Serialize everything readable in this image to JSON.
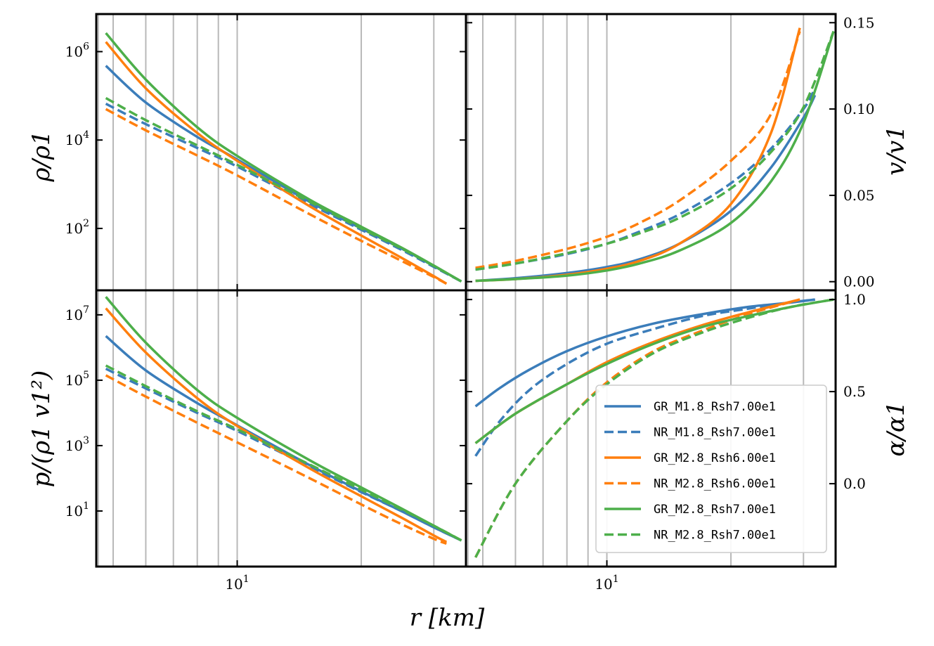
{
  "chart_data": {
    "type": "line",
    "layout": "2x2 panels, shared x axis",
    "xlabel": "r [km]",
    "x_axis_scale": "log",
    "x_tick_labels": [
      "10^1"
    ],
    "colors": {
      "M1.8_Rsh70": "#3b7dba",
      "M2.8_Rsh60": "#ff7f0e",
      "M2.8_Rsh70": "#4daf4a"
    },
    "legend": {
      "placement": "lower-right (bottom-right panel)",
      "entries": [
        {
          "label": "GR_M1.8_Rsh7.00e1",
          "color": "#3b7dba",
          "style": "solid"
        },
        {
          "label": "NR_M1.8_Rsh7.00e1",
          "color": "#3b7dba",
          "style": "dashed"
        },
        {
          "label": "GR_M2.8_Rsh6.00e1",
          "color": "#ff7f0e",
          "style": "solid"
        },
        {
          "label": "NR_M2.8_Rsh6.00e1",
          "color": "#ff7f0e",
          "style": "dashed"
        },
        {
          "label": "GR_M2.8_Rsh7.00e1",
          "color": "#4daf4a",
          "style": "solid"
        },
        {
          "label": "NR_M2.8_Rsh7.00e1",
          "color": "#4daf4a",
          "style": "dashed"
        }
      ]
    },
    "panels": [
      {
        "id": "density",
        "ylabel": "ρ/ρ1",
        "yscale": "log",
        "y_tick_labels": [
          "10^2",
          "10^4",
          "10^6"
        ],
        "xlim": [
          4.55,
          35.9
        ],
        "ylim_log10": [
          0.6,
          6.85
        ],
        "series": [
          {
            "name": "GR_M1.8_Rsh7.00e1",
            "style": "solid",
            "color": "#3b7dba",
            "x": [
              4.8,
              6,
              8,
              10,
              15,
              20,
              25,
              30,
              35
            ],
            "y_log10": [
              5.68,
              4.85,
              4.07,
              3.56,
              2.6,
              2.0,
              1.55,
              1.15,
              0.8
            ]
          },
          {
            "name": "NR_M1.8_Rsh7.00e1",
            "style": "dashed",
            "color": "#3b7dba",
            "x": [
              4.8,
              6,
              8,
              10,
              15,
              20,
              25,
              30,
              35
            ],
            "y_log10": [
              4.82,
              4.36,
              3.82,
              3.4,
              2.55,
              1.97,
              1.52,
              1.13,
              0.8
            ]
          },
          {
            "name": "GR_M2.8_Rsh6.00e1",
            "style": "solid",
            "color": "#ff7f0e",
            "x": [
              4.8,
              6,
              8,
              10,
              15,
              20,
              25,
              30,
              32.2
            ],
            "y_log10": [
              6.22,
              5.17,
              4.16,
              3.53,
              2.5,
              1.84,
              1.34,
              0.92,
              0.75
            ]
          },
          {
            "name": "NR_M2.8_Rsh6.00e1",
            "style": "dashed",
            "color": "#ff7f0e",
            "x": [
              4.8,
              6,
              8,
              10,
              15,
              20,
              25,
              30,
              32.2
            ],
            "y_log10": [
              4.7,
              4.22,
              3.65,
              3.2,
              2.32,
              1.72,
              1.27,
              0.9,
              0.75
            ]
          },
          {
            "name": "GR_M2.8_Rsh7.00e1",
            "style": "solid",
            "color": "#4daf4a",
            "x": [
              4.8,
              6,
              8,
              10,
              15,
              20,
              25,
              30,
              35
            ],
            "y_log10": [
              6.42,
              5.37,
              4.29,
              3.64,
              2.65,
              2.04,
              1.57,
              1.16,
              0.8
            ]
          },
          {
            "name": "NR_M2.8_Rsh7.00e1",
            "style": "dashed",
            "color": "#4daf4a",
            "x": [
              4.8,
              6,
              8,
              10,
              15,
              20,
              25,
              30,
              35
            ],
            "y_log10": [
              4.95,
              4.45,
              3.88,
              3.44,
              2.6,
              2.0,
              1.55,
              1.15,
              0.8
            ]
          }
        ]
      },
      {
        "id": "velocity",
        "ylabel": "v/v1",
        "yscale": "linear",
        "y_tick_labels": [
          "0.00",
          "0.05",
          "0.10",
          "0.15"
        ],
        "xlim": [
          4.55,
          35.9
        ],
        "ylim": [
          -0.005,
          0.155
        ],
        "series": [
          {
            "name": "GR_M1.8_Rsh7.00e1",
            "style": "solid",
            "color": "#3b7dba",
            "x": [
              4.8,
              6,
              8,
              10,
              12,
              15,
              20,
              25,
              30,
              32
            ],
            "y": [
              0.0005,
              0.002,
              0.005,
              0.0085,
              0.013,
              0.022,
              0.041,
              0.066,
              0.095,
              0.108
            ]
          },
          {
            "name": "NR_M1.8_Rsh7.00e1",
            "style": "dashed",
            "color": "#3b7dba",
            "x": [
              4.8,
              6,
              8,
              10,
              12,
              15,
              20,
              25,
              30,
              32
            ],
            "y": [
              0.007,
              0.0105,
              0.016,
              0.022,
              0.029,
              0.039,
              0.057,
              0.077,
              0.1,
              0.112
            ]
          },
          {
            "name": "GR_M2.8_Rsh6.00e1",
            "style": "solid",
            "color": "#ff7f0e",
            "x": [
              4.8,
              6,
              8,
              10,
              12,
              15,
              20,
              25,
              29.4
            ],
            "y": [
              0.0005,
              0.0015,
              0.004,
              0.0075,
              0.012,
              0.022,
              0.045,
              0.086,
              0.147
            ]
          },
          {
            "name": "NR_M2.8_Rsh6.00e1",
            "style": "dashed",
            "color": "#ff7f0e",
            "x": [
              4.8,
              6,
              8,
              10,
              12,
              15,
              20,
              25,
              29.4
            ],
            "y": [
              0.008,
              0.012,
              0.019,
              0.026,
              0.034,
              0.047,
              0.07,
              0.097,
              0.145
            ]
          },
          {
            "name": "GR_M2.8_Rsh7.00e1",
            "style": "solid",
            "color": "#4daf4a",
            "x": [
              4.8,
              6,
              8,
              10,
              12,
              15,
              20,
              25,
              30,
              35.5
            ],
            "y": [
              0.0005,
              0.0015,
              0.0035,
              0.0065,
              0.0105,
              0.018,
              0.034,
              0.058,
              0.092,
              0.145
            ]
          },
          {
            "name": "NR_M2.8_Rsh7.00e1",
            "style": "dashed",
            "color": "#4daf4a",
            "x": [
              4.8,
              6,
              8,
              10,
              12,
              15,
              20,
              25,
              30,
              35.5
            ],
            "y": [
              0.007,
              0.0105,
              0.0165,
              0.022,
              0.028,
              0.037,
              0.054,
              0.075,
              0.101,
              0.145
            ]
          }
        ]
      },
      {
        "id": "pressure",
        "ylabel": "p/(ρ1 v1²)",
        "yscale": "log",
        "y_tick_labels": [
          "10^1",
          "10^3",
          "10^5",
          "10^7"
        ],
        "xlim": [
          4.55,
          35.9
        ],
        "ylim_log10": [
          -0.7,
          7.75
        ],
        "series": [
          {
            "name": "GR_M1.8_Rsh7.00e1",
            "style": "solid",
            "color": "#3b7dba",
            "x": [
              4.8,
              6,
              8,
              10,
              15,
              20,
              25,
              30,
              35
            ],
            "y_log10": [
              6.35,
              5.3,
              4.3,
              3.62,
              2.4,
              1.6,
              1.0,
              0.5,
              0.1
            ]
          },
          {
            "name": "NR_M1.8_Rsh7.00e1",
            "style": "dashed",
            "color": "#3b7dba",
            "x": [
              4.8,
              6,
              8,
              10,
              15,
              20,
              25,
              30,
              35
            ],
            "y_log10": [
              5.35,
              4.75,
              4.0,
              3.45,
              2.35,
              1.58,
              1.0,
              0.5,
              0.1
            ]
          },
          {
            "name": "GR_M2.8_Rsh6.00e1",
            "style": "solid",
            "color": "#ff7f0e",
            "x": [
              4.8,
              6,
              8,
              10,
              15,
              20,
              25,
              30,
              32.2
            ],
            "y_log10": [
              7.2,
              5.85,
              4.45,
              3.6,
              2.3,
              1.45,
              0.8,
              0.25,
              0.05
            ]
          },
          {
            "name": "NR_M2.8_Rsh6.00e1",
            "style": "dashed",
            "color": "#ff7f0e",
            "x": [
              4.8,
              6,
              8,
              10,
              15,
              20,
              25,
              30,
              32.2
            ],
            "y_log10": [
              5.15,
              4.5,
              3.7,
              3.1,
              2.0,
              1.2,
              0.6,
              0.15,
              0.0
            ]
          },
          {
            "name": "GR_M2.8_Rsh7.00e1",
            "style": "solid",
            "color": "#4daf4a",
            "x": [
              4.8,
              6,
              8,
              10,
              15,
              20,
              25,
              30,
              35
            ],
            "y_log10": [
              7.55,
              6.15,
              4.7,
              3.85,
              2.55,
              1.72,
              1.08,
              0.55,
              0.1
            ]
          },
          {
            "name": "NR_M2.8_Rsh7.00e1",
            "style": "dashed",
            "color": "#4daf4a",
            "x": [
              4.8,
              6,
              8,
              10,
              15,
              20,
              25,
              30,
              35
            ],
            "y_log10": [
              5.45,
              4.82,
              4.05,
              3.5,
              2.42,
              1.65,
              1.05,
              0.55,
              0.1
            ]
          }
        ]
      },
      {
        "id": "lapse",
        "ylabel": "α/α1",
        "yscale": "linear",
        "y_tick_labels": [
          "0.0",
          "0.5",
          "1.0"
        ],
        "xlim": [
          4.55,
          35.9
        ],
        "ylim": [
          -0.45,
          1.05
        ],
        "series": [
          {
            "name": "GR_M1.8_Rsh7.00e1",
            "style": "solid",
            "color": "#3b7dba",
            "x": [
              4.8,
              5.5,
              6.5,
              8,
              10,
              13,
              17,
              22,
              27,
              32
            ],
            "y": [
              0.42,
              0.52,
              0.62,
              0.72,
              0.8,
              0.87,
              0.92,
              0.96,
              0.98,
              1.0
            ]
          },
          {
            "name": "NR_M1.8_Rsh7.00e1",
            "style": "dashed",
            "color": "#3b7dba",
            "x": [
              4.8,
              5.5,
              6.5,
              8,
              10,
              13,
              17,
              22,
              27,
              32
            ],
            "y": [
              0.15,
              0.34,
              0.51,
              0.65,
              0.76,
              0.84,
              0.91,
              0.95,
              0.98,
              1.0
            ]
          },
          {
            "name": "GR_M2.8_Rsh6.00e1",
            "style": "solid",
            "color": "#ff7f0e",
            "x": [
              4.8,
              6,
              8,
              10,
              13,
              17,
              22,
              29.4
            ],
            "y": [
              0.22,
              0.38,
              0.54,
              0.66,
              0.77,
              0.86,
              0.93,
              1.0
            ]
          },
          {
            "name": "NR_M2.8_Rsh6.00e1",
            "style": "dashed",
            "color": "#ff7f0e",
            "x": [
              4.8,
              6,
              8,
              10,
              13,
              17,
              22,
              29.4
            ],
            "y": [
              -0.4,
              0.0,
              0.34,
              0.55,
              0.72,
              0.83,
              0.92,
              1.0
            ]
          },
          {
            "name": "GR_M2.8_Rsh7.00e1",
            "style": "solid",
            "color": "#4daf4a",
            "x": [
              4.8,
              6,
              8,
              10,
              13,
              17,
              22,
              28,
              35.5
            ],
            "y": [
              0.22,
              0.38,
              0.54,
              0.65,
              0.76,
              0.85,
              0.91,
              0.96,
              1.0
            ]
          },
          {
            "name": "NR_M2.8_Rsh7.00e1",
            "style": "dashed",
            "color": "#4daf4a",
            "x": [
              4.8,
              6,
              8,
              10,
              13,
              17,
              22,
              28,
              35.5
            ],
            "y": [
              -0.4,
              0.0,
              0.34,
              0.54,
              0.71,
              0.82,
              0.9,
              0.96,
              1.0
            ]
          }
        ]
      }
    ]
  }
}
